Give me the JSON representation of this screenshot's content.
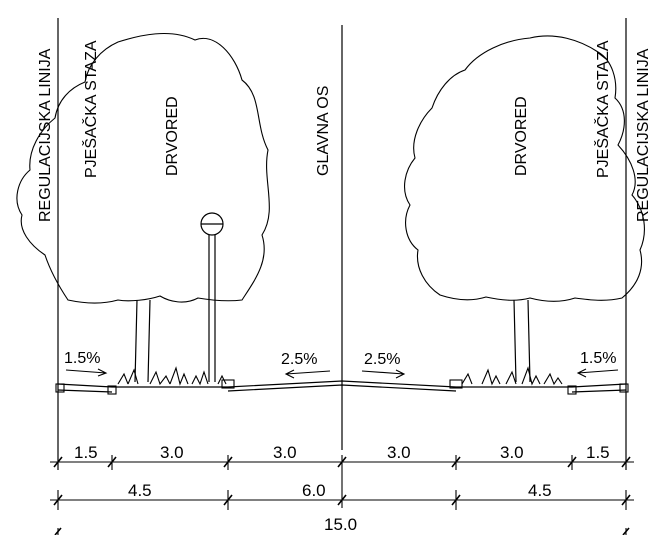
{
  "vertical_labels": {
    "regulation_line": "REGULACIJSKA LINIJA",
    "footpath": "PJEŠAČKA STAZA",
    "tree_row": "DRVORED",
    "main_axis": "GLAVNA OS"
  },
  "grades": {
    "footpath": "1.5%",
    "carriageway": "2.5%"
  },
  "dimensions": {
    "row1": [
      "1.5",
      "3.0",
      "3.0",
      "3.0",
      "3.0",
      "1.5"
    ],
    "row2": [
      "4.5",
      "6.0",
      "4.5"
    ],
    "row3": [
      "15.0"
    ]
  }
}
